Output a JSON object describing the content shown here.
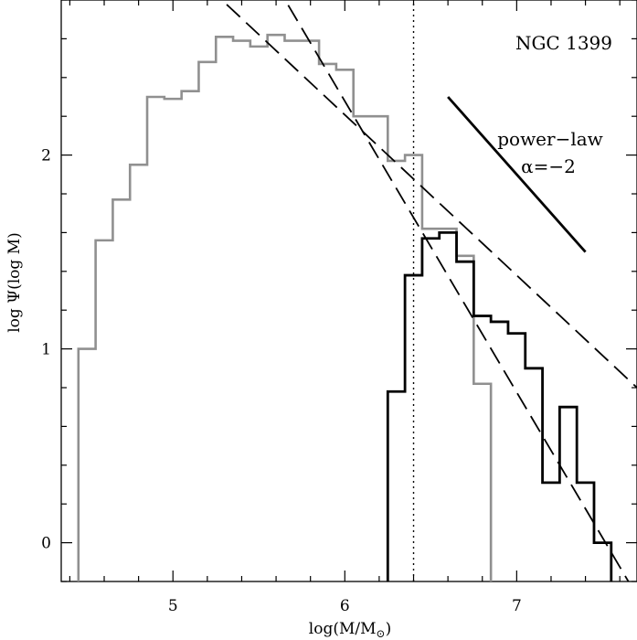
{
  "chart_data": {
    "type": "line",
    "xlabel": "log(M/M",
    "xlabel_sub": "⊙",
    "xlabel_close": ")",
    "ylabel": "log Ψ(log M)",
    "xlim": [
      4.35,
      7.7
    ],
    "ylim": [
      -0.2,
      2.8
    ],
    "x_ticks": [
      5,
      6,
      7
    ],
    "y_ticks": [
      0,
      1,
      2
    ],
    "grid": false,
    "annotations": {
      "object": "NGC 1399",
      "powerlaw_line1": "power−law",
      "powerlaw_line2": "α=−2"
    },
    "series": [
      {
        "style": "gray-histogram",
        "color": "#909090",
        "edges": [
          4.45,
          4.55,
          4.65,
          4.75,
          4.85,
          4.95,
          5.05,
          5.15,
          5.25,
          5.35,
          5.45,
          5.55,
          5.65,
          5.75,
          5.85,
          5.95,
          6.05,
          6.15,
          6.25,
          6.35,
          6.45,
          6.55,
          6.65,
          6.75,
          6.85
        ],
        "values": [
          1.0,
          1.56,
          1.77,
          1.95,
          2.3,
          2.29,
          2.33,
          2.48,
          2.61,
          2.59,
          2.56,
          2.62,
          2.59,
          2.59,
          2.47,
          2.44,
          2.2,
          2.2,
          1.97,
          2.0,
          1.62,
          1.62,
          1.48,
          0.82
        ]
      },
      {
        "style": "black-histogram",
        "color": "#000000",
        "edges": [
          6.25,
          6.35,
          6.45,
          6.55,
          6.65,
          6.75,
          6.85,
          6.95,
          7.05,
          7.15,
          7.25,
          7.35,
          7.45,
          7.55
        ],
        "values": [
          0.78,
          1.38,
          1.57,
          1.6,
          1.45,
          1.17,
          1.14,
          1.08,
          0.9,
          0.31,
          0.7,
          0.31,
          0.0
        ]
      },
      {
        "style": "dashed-fit",
        "x": [
          5.2,
          7.65
        ],
        "y": [
          3.48,
          -0.2
        ]
      },
      {
        "style": "dashed-fit",
        "x": [
          5.2,
          7.7
        ],
        "y": [
          2.87,
          0.8
        ]
      },
      {
        "style": "reference-powerlaw",
        "x": [
          6.6,
          7.4
        ],
        "y": [
          2.3,
          1.5
        ]
      },
      {
        "style": "dotted-vertical",
        "x": [
          6.4,
          6.4
        ],
        "y": [
          -0.2,
          2.8
        ]
      }
    ]
  }
}
